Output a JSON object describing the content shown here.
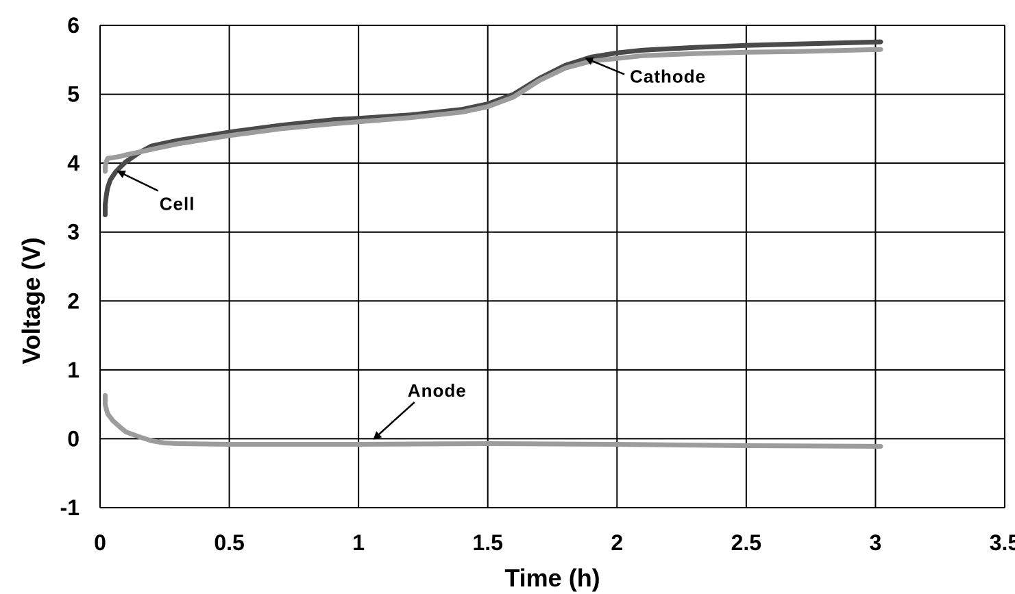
{
  "chart_data": {
    "type": "line",
    "title": "",
    "xlabel": "Time (h)",
    "ylabel": "Voltage (V)",
    "xlim": [
      0,
      3.5
    ],
    "ylim": [
      -1,
      6
    ],
    "xticks": [
      "0",
      "0.5",
      "1",
      "1.5",
      "2",
      "2.5",
      "3",
      "3.5"
    ],
    "yticks": [
      "-1",
      "0",
      "1",
      "2",
      "3",
      "4",
      "5",
      "6"
    ],
    "grid": true,
    "series": [
      {
        "color": "#4a4a4a",
        "x": [
          0.02,
          0.02,
          0.025,
          0.03,
          0.04,
          0.06,
          0.08,
          0.1,
          0.15,
          0.2,
          0.3,
          0.4,
          0.5,
          0.7,
          0.9,
          1.0,
          1.2,
          1.4,
          1.5,
          1.6,
          1.7,
          1.8,
          1.9,
          2.0,
          2.1,
          2.3,
          2.5,
          2.7,
          3.02
        ],
        "y": [
          3.25,
          3.4,
          3.55,
          3.65,
          3.76,
          3.87,
          3.95,
          4.02,
          4.15,
          4.25,
          4.33,
          4.39,
          4.45,
          4.55,
          4.63,
          4.65,
          4.7,
          4.78,
          4.86,
          5.0,
          5.23,
          5.42,
          5.54,
          5.6,
          5.64,
          5.68,
          5.71,
          5.73,
          5.76
        ]
      },
      {
        "color": "#9c9c9c",
        "x": [
          0.02,
          0.02,
          0.025,
          0.03,
          0.05,
          0.08,
          0.1,
          0.15,
          0.2,
          0.3,
          0.4,
          0.5,
          0.7,
          0.9,
          1.0,
          1.2,
          1.4,
          1.5,
          1.6,
          1.7,
          1.8,
          1.9,
          2.0,
          2.1,
          2.3,
          2.5,
          2.7,
          3.02
        ],
        "y": [
          3.88,
          3.95,
          4.03,
          4.07,
          4.08,
          4.1,
          4.12,
          4.16,
          4.2,
          4.28,
          4.34,
          4.4,
          4.5,
          4.57,
          4.6,
          4.66,
          4.74,
          4.82,
          4.96,
          5.2,
          5.38,
          5.48,
          5.52,
          5.56,
          5.59,
          5.61,
          5.62,
          5.65
        ]
      },
      {
        "color": "#9c9c9c",
        "x": [
          0.02,
          0.02,
          0.025,
          0.03,
          0.05,
          0.08,
          0.1,
          0.15,
          0.2,
          0.25,
          0.3,
          0.5,
          1.0,
          1.5,
          2.0,
          2.5,
          3.02
        ],
        "y": [
          0.63,
          0.5,
          0.42,
          0.36,
          0.26,
          0.16,
          0.1,
          0.03,
          -0.03,
          -0.06,
          -0.07,
          -0.08,
          -0.08,
          -0.07,
          -0.08,
          -0.1,
          -0.11
        ]
      }
    ],
    "annotations": [
      {
        "text": "Cathode",
        "x": 2.05,
        "y": 5.17,
        "arrow_to": [
          1.88,
          5.52
        ]
      },
      {
        "text": "Cell",
        "x": 0.23,
        "y": 3.32,
        "arrow_to": [
          0.07,
          3.88
        ]
      },
      {
        "text": "Anode",
        "x": 1.19,
        "y": 0.61,
        "arrow_to": [
          1.06,
          0.0
        ]
      }
    ]
  }
}
